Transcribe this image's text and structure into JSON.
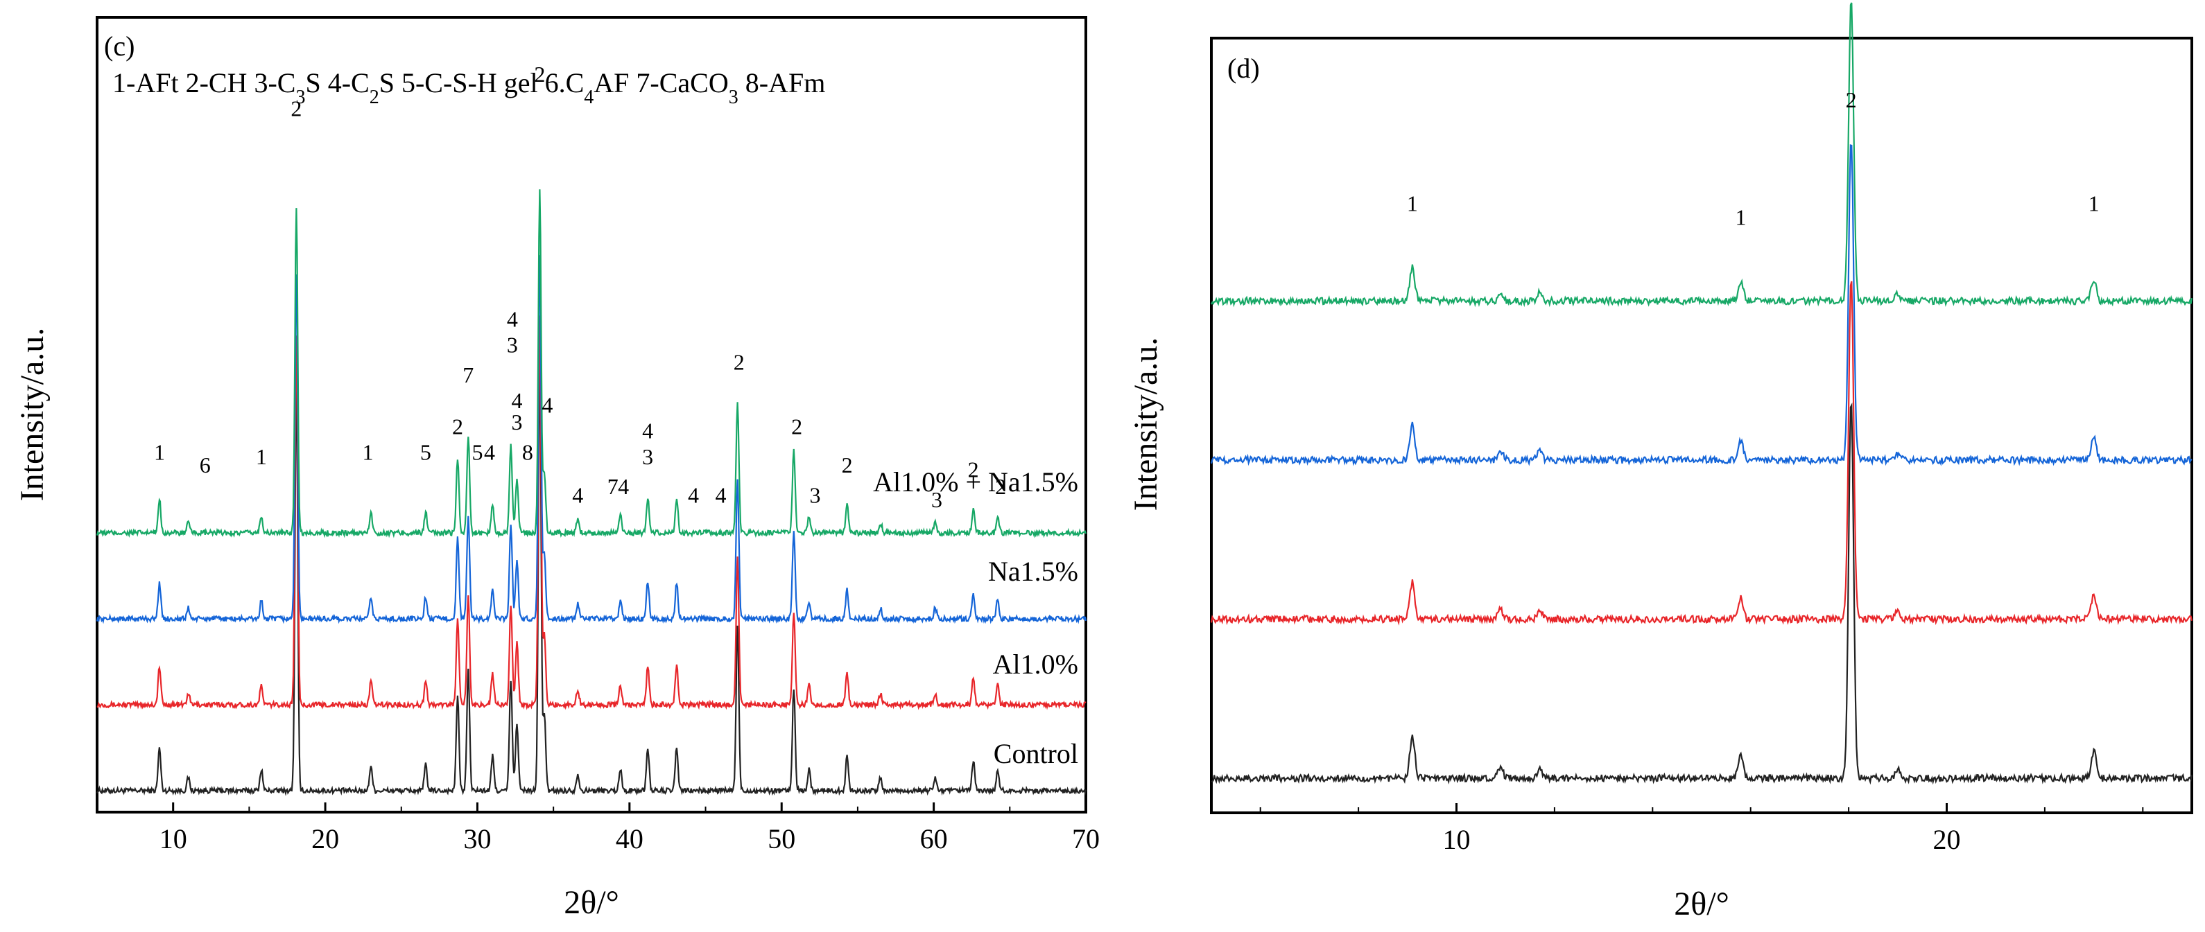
{
  "chart_data": [
    {
      "type": "line",
      "panel_label": "(c)",
      "legend_text": [
        "1-AFt 2-CH 3-C",
        "3",
        "S 4-C",
        "2",
        "S 5-C-S-H gel 6.C",
        "4",
        "AF 7-CaCO",
        "3",
        " 8-AFm"
      ],
      "xlabel": "2θ/°",
      "ylabel": "Intensity/a.u.",
      "xlim": [
        5,
        70
      ],
      "xticks": [
        "10",
        "20",
        "30",
        "40",
        "50",
        "60",
        "70"
      ],
      "series": [
        {
          "name": "Control",
          "color": "#222222",
          "baseline": 0.05,
          "peaks_label": "Control"
        },
        {
          "name": "Al1.0%",
          "color": "#e8262a",
          "baseline": 0.25
        },
        {
          "name": "Na1.5%",
          "color": "#1565d8",
          "baseline": 0.45
        },
        {
          "name": "Al1.0% + Na1.5%",
          "color": "#17a866",
          "baseline": 0.65
        }
      ],
      "peaks": [
        {
          "x": 9.1,
          "h": 0.1
        },
        {
          "x": 11.0,
          "h": 0.03
        },
        {
          "x": 15.8,
          "h": 0.05
        },
        {
          "x": 18.1,
          "h": 0.95
        },
        {
          "x": 23.0,
          "h": 0.06
        },
        {
          "x": 26.6,
          "h": 0.06
        },
        {
          "x": 28.7,
          "h": 0.22
        },
        {
          "x": 29.4,
          "h": 0.28
        },
        {
          "x": 31.0,
          "h": 0.08
        },
        {
          "x": 32.2,
          "h": 0.26
        },
        {
          "x": 32.6,
          "h": 0.16
        },
        {
          "x": 34.1,
          "h": 1.0
        },
        {
          "x": 34.4,
          "h": 0.18
        },
        {
          "x": 36.6,
          "h": 0.04
        },
        {
          "x": 39.4,
          "h": 0.05
        },
        {
          "x": 41.2,
          "h": 0.1
        },
        {
          "x": 43.1,
          "h": 0.1
        },
        {
          "x": 47.1,
          "h": 0.38
        },
        {
          "x": 50.8,
          "h": 0.24
        },
        {
          "x": 51.8,
          "h": 0.05
        },
        {
          "x": 54.3,
          "h": 0.08
        },
        {
          "x": 56.5,
          "h": 0.03
        },
        {
          "x": 60.1,
          "h": 0.03
        },
        {
          "x": 62.6,
          "h": 0.07
        },
        {
          "x": 64.2,
          "h": 0.05
        }
      ],
      "annotations": [
        {
          "x": 9.1,
          "y": 0.82,
          "text": "1"
        },
        {
          "x": 12.1,
          "y": 0.79,
          "text": "6"
        },
        {
          "x": 15.8,
          "y": 0.81,
          "text": "1"
        },
        {
          "x": 18.1,
          "y": 1.62,
          "text": "2"
        },
        {
          "x": 22.8,
          "y": 0.82,
          "text": "1"
        },
        {
          "x": 26.6,
          "y": 0.82,
          "text": "5"
        },
        {
          "x": 28.7,
          "y": 0.88,
          "text": "2"
        },
        {
          "x": 29.4,
          "y": 1.0,
          "text": "7"
        },
        {
          "x": 30.0,
          "y": 0.82,
          "text": "5"
        },
        {
          "x": 30.8,
          "y": 0.82,
          "text": "4"
        },
        {
          "x": 32.3,
          "y": 1.13,
          "text": "4"
        },
        {
          "x": 32.3,
          "y": 1.07,
          "text": "3"
        },
        {
          "x": 32.6,
          "y": 0.94,
          "text": "4"
        },
        {
          "x": 32.6,
          "y": 0.89,
          "text": "3"
        },
        {
          "x": 33.3,
          "y": 0.82,
          "text": "8"
        },
        {
          "x": 34.1,
          "y": 1.7,
          "text": "2"
        },
        {
          "x": 34.6,
          "y": 0.93,
          "text": "4"
        },
        {
          "x": 36.6,
          "y": 0.72,
          "text": "4"
        },
        {
          "x": 38.9,
          "y": 0.74,
          "text": "7"
        },
        {
          "x": 39.6,
          "y": 0.74,
          "text": "4"
        },
        {
          "x": 41.2,
          "y": 0.87,
          "text": "4"
        },
        {
          "x": 41.2,
          "y": 0.81,
          "text": "3"
        },
        {
          "x": 44.2,
          "y": 0.72,
          "text": "4"
        },
        {
          "x": 46.0,
          "y": 0.72,
          "text": "4"
        },
        {
          "x": 47.2,
          "y": 1.03,
          "text": "2"
        },
        {
          "x": 51.0,
          "y": 0.88,
          "text": "2"
        },
        {
          "x": 52.2,
          "y": 0.72,
          "text": "3"
        },
        {
          "x": 54.3,
          "y": 0.79,
          "text": "2"
        },
        {
          "x": 60.2,
          "y": 0.71,
          "text": "3"
        },
        {
          "x": 62.6,
          "y": 0.78,
          "text": "2"
        },
        {
          "x": 64.4,
          "y": 0.74,
          "text": "2"
        }
      ],
      "curve_labels": [
        {
          "series": "Al1.0% + Na1.5%",
          "text": "Al1.0% + Na1.5%"
        },
        {
          "series": "Na1.5%",
          "text": "Na1.5%"
        },
        {
          "series": "Al1.0%",
          "text": "Al1.0%"
        },
        {
          "series": "Control",
          "text": "Control"
        }
      ],
      "ylim": [
        0,
        1.85
      ]
    },
    {
      "type": "line",
      "panel_label": "(d)",
      "xlabel": "2θ/°",
      "ylabel": "Intensity/a.u.",
      "xlim": [
        5,
        25
      ],
      "xticks": [
        "10",
        "20"
      ],
      "series": [
        {
          "name": "Control",
          "color": "#222222",
          "baseline": 0.05
        },
        {
          "name": "Al1.0%",
          "color": "#e8262a",
          "baseline": 0.28
        },
        {
          "name": "Na1.5%",
          "color": "#1565d8",
          "baseline": 0.51
        },
        {
          "name": "Al1.0% + Na1.5%",
          "color": "#17a866",
          "baseline": 0.74
        }
      ],
      "peaks": [
        {
          "x": 9.1,
          "h": 0.06
        },
        {
          "x": 10.9,
          "h": 0.015
        },
        {
          "x": 11.7,
          "h": 0.015
        },
        {
          "x": 15.8,
          "h": 0.035
        },
        {
          "x": 18.05,
          "h": 0.55
        },
        {
          "x": 19.0,
          "h": 0.012
        },
        {
          "x": 23.0,
          "h": 0.04
        }
      ],
      "annotations": [
        {
          "x": 9.1,
          "y": 0.87,
          "text": "1"
        },
        {
          "x": 15.8,
          "y": 0.85,
          "text": "1"
        },
        {
          "x": 18.05,
          "y": 1.02,
          "text": "2"
        },
        {
          "x": 23.0,
          "y": 0.87,
          "text": "1"
        }
      ],
      "ylim": [
        0,
        1.12
      ]
    }
  ]
}
